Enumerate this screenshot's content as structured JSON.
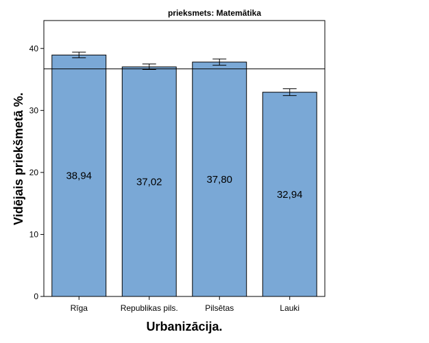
{
  "chart_data": {
    "type": "bar",
    "title": "prieksmets: Matemātika",
    "xlabel": "Urbanizācija.",
    "ylabel": "Vidējais priekšmetā %.",
    "categories": [
      "Rīga",
      "Republikas pils.",
      "Pilsētas",
      "Lauki"
    ],
    "values": [
      38.94,
      37.02,
      37.8,
      32.94
    ],
    "value_labels": [
      "38,94",
      "37,02",
      "37,80",
      "32,94"
    ],
    "error_bars": [
      [
        38.5,
        39.4
      ],
      [
        36.6,
        37.5
      ],
      [
        37.3,
        38.3
      ],
      [
        32.4,
        33.5
      ]
    ],
    "reference_line": 36.7,
    "ylim": [
      0,
      44.5
    ],
    "yticks": [
      0,
      10,
      20,
      30,
      40
    ],
    "grid": false,
    "bar_color": "#7aa8d6"
  }
}
